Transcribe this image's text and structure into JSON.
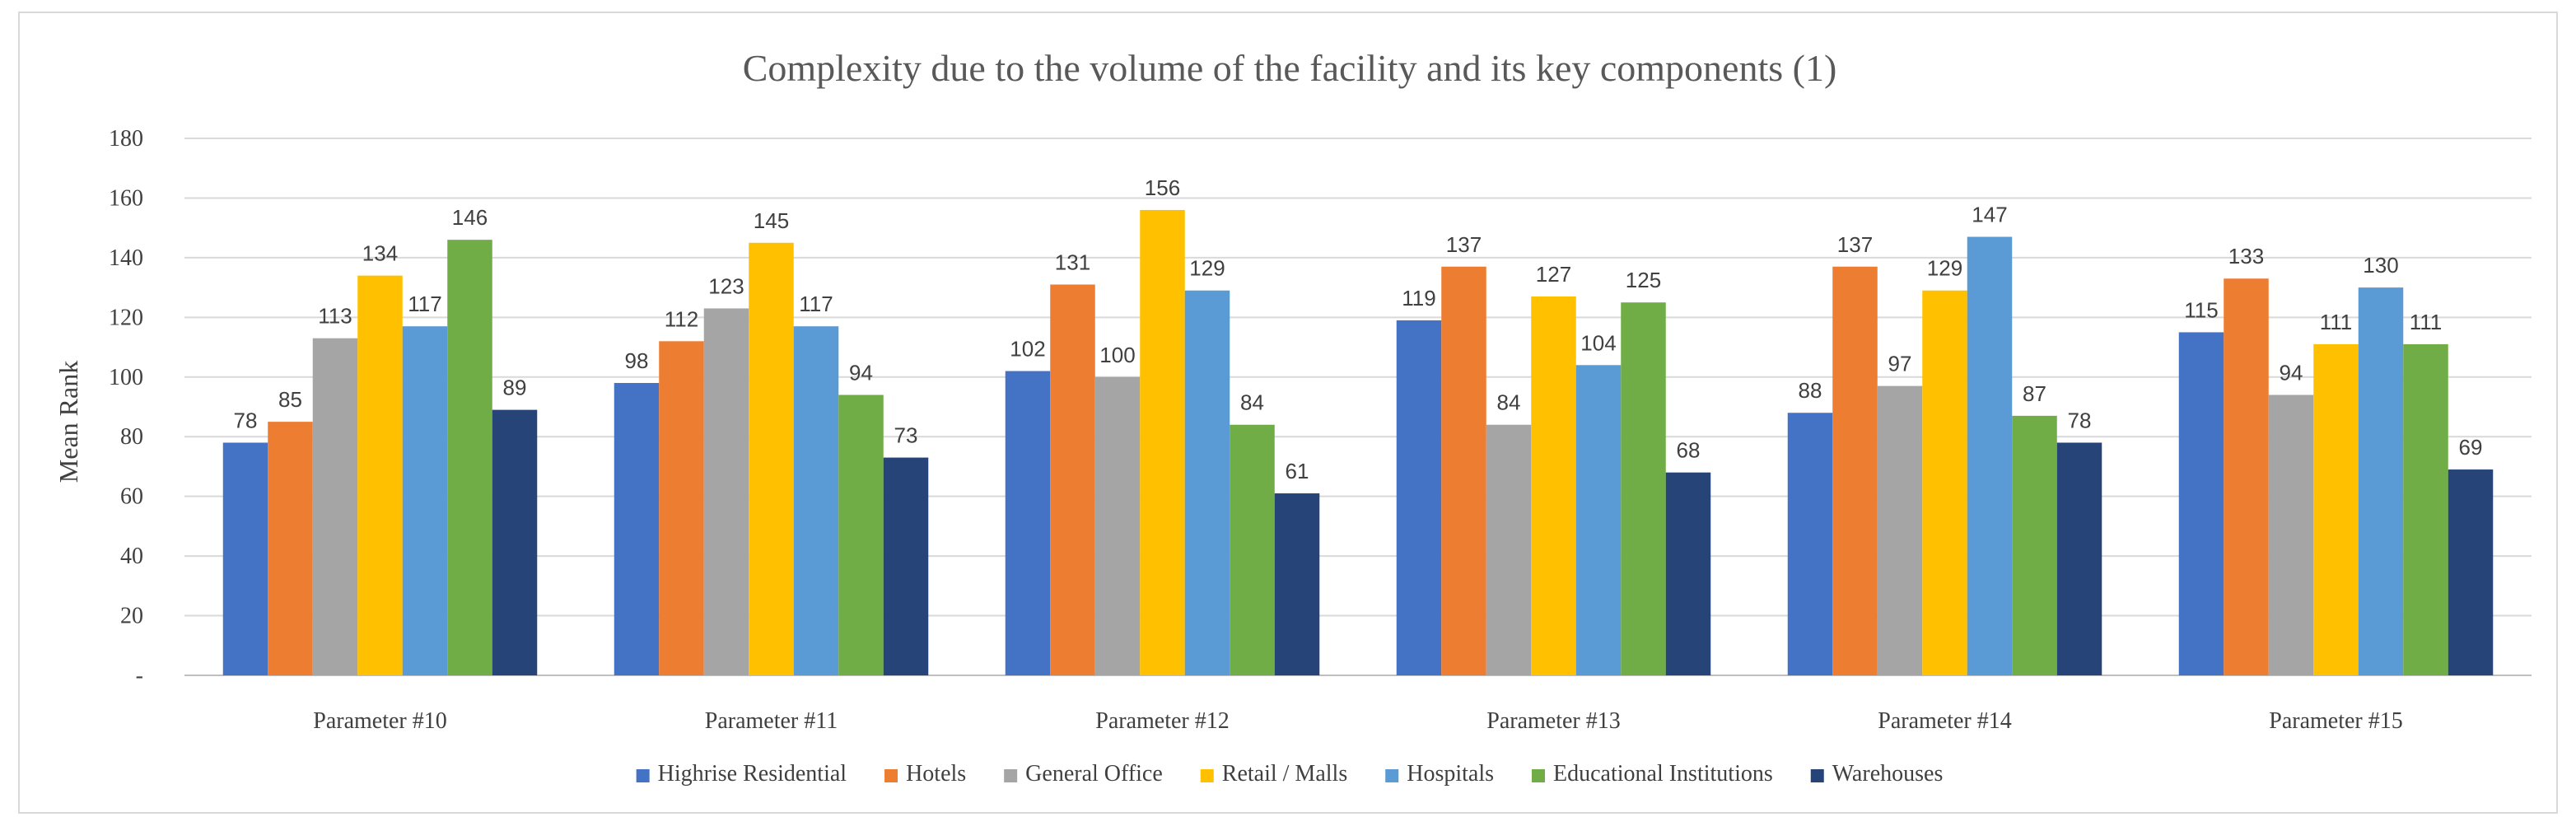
{
  "chart_data": {
    "type": "bar",
    "title": "Complexity due to the volume of the facility and its key components (1)",
    "xlabel": "",
    "ylabel": "Mean Rank",
    "ylim": [
      0,
      180
    ],
    "yticks": [
      0,
      20,
      40,
      60,
      80,
      100,
      120,
      140,
      160,
      180
    ],
    "ytick_labels": [
      "-",
      "20",
      "40",
      "60",
      "80",
      "100",
      "120",
      "140",
      "160",
      "180"
    ],
    "grid": true,
    "legend_position": "bottom",
    "categories": [
      "Parameter #10",
      "Parameter #11",
      "Parameter #12",
      "Parameter #13",
      "Parameter #14",
      "Parameter #15"
    ],
    "series": [
      {
        "name": "Highrise Residential",
        "color": "#4472c4",
        "values": [
          78,
          98,
          102,
          119,
          88,
          115
        ]
      },
      {
        "name": "Hotels",
        "color": "#ed7d31",
        "values": [
          85,
          112,
          131,
          137,
          137,
          133
        ]
      },
      {
        "name": "General Office",
        "color": "#a5a5a5",
        "values": [
          113,
          123,
          100,
          84,
          97,
          94
        ]
      },
      {
        "name": "Retail / Malls",
        "color": "#ffc000",
        "values": [
          134,
          145,
          156,
          127,
          129,
          111
        ]
      },
      {
        "name": "Hospitals",
        "color": "#5b9bd5",
        "values": [
          117,
          117,
          129,
          104,
          147,
          130
        ]
      },
      {
        "name": "Educational Institutions",
        "color": "#70ad47",
        "values": [
          146,
          94,
          84,
          125,
          87,
          111
        ]
      },
      {
        "name": "Warehouses",
        "color": "#264478",
        "values": [
          89,
          73,
          61,
          68,
          78,
          69
        ]
      }
    ]
  }
}
